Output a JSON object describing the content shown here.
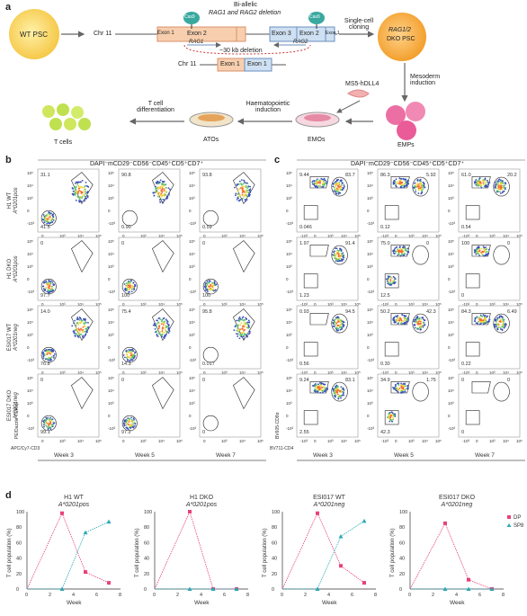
{
  "panel_a": {
    "label": "a",
    "wt_psc": "WT PSC",
    "chr11_top": "Chr 11",
    "bi_allelic": "Bi-allelic",
    "deletion_text": "RAG1 and RAG2 deletion",
    "cas9_left": "Cas9",
    "cas9_right": "Cas9",
    "exon2_left": "Exon 2",
    "exon1_left": "Exon 1",
    "exon3": "Exon 3",
    "exon2_right": "Exon 2",
    "exon1_right": "Exon 1",
    "rag1_tag": "RAG1",
    "rag2_tag": "RAG2",
    "deletion_size": "~30 kb deletion",
    "chr11_bottom": "Chr 11",
    "exon1_b1": "Exon 1",
    "exon1_b2": "Exon 1",
    "single_cell_cloning": "Single-cell cloning",
    "dko_psc_line1": "RAG1/2",
    "dko_psc_line2": "DKO PSC",
    "mesoderm_induction": "Mesoderm induction",
    "ms5": "MS5-hDLL4",
    "emps": "EMPs",
    "emos": "EMOs",
    "atos": "ATOs",
    "haemato_induction": "Haematopoietic induction",
    "tcell_diff": "T cell differentiation",
    "tcells": "T cells"
  },
  "panel_b": {
    "label": "b",
    "header": "DAPI⁻mCD29⁻CD56⁻CD45⁺CD5⁺CD7⁺",
    "y_axis": "PE/Dazzle-TCRαβ",
    "x_axis": "APC/Cy7-CD3",
    "weeks": [
      "Week 3",
      "Week 5",
      "Week 7"
    ],
    "rows": [
      {
        "name": "H1 WT",
        "allele": "A*0201pos",
        "vals": [
          [
            "31.1",
            "41.5"
          ],
          [
            "90.8",
            "0.90"
          ],
          [
            "93.8",
            "0.59"
          ]
        ]
      },
      {
        "name": "H1 DKO",
        "allele": "A*0201pos",
        "vals": [
          [
            "0",
            "97.7"
          ],
          [
            "0",
            "100"
          ],
          [
            "0",
            "100"
          ]
        ]
      },
      {
        "name": "ESI017 WT",
        "allele": "A*0201neg",
        "vals": [
          [
            "14.0",
            "76.8"
          ],
          [
            "75.4",
            "14.3"
          ],
          [
            "95.8",
            "0.017"
          ]
        ]
      },
      {
        "name": "ESI017 DKO",
        "allele": "A*0201neg",
        "vals": [
          [
            "0",
            "99.1"
          ],
          [
            "0",
            "97.2"
          ],
          [
            "0",
            "0"
          ]
        ]
      }
    ],
    "ticks_y": [
      "10⁵",
      "10⁴",
      "10³",
      "0",
      "-10³"
    ],
    "ticks_x": [
      "0",
      "10³",
      "10⁴",
      "10⁵"
    ]
  },
  "panel_c": {
    "label": "c",
    "header": "DAPI⁻mCD29⁻CD56⁻CD45⁺CD5⁺CD7⁺",
    "y_axis": "BV605-CD8α",
    "x_axis": "BV711-CD4",
    "weeks": [
      "Week 3",
      "Week 5",
      "Week 7"
    ],
    "rows": [
      {
        "vals": [
          [
            "9.44",
            "83.7",
            "0.046"
          ],
          [
            "86.3",
            "5.92",
            "0.12"
          ],
          [
            "61.0",
            "20.2",
            "0.54"
          ]
        ]
      },
      {
        "vals": [
          [
            "1.97",
            "91.4",
            "1.23"
          ],
          [
            "75.0",
            "0",
            "12.5"
          ],
          [
            "100",
            "0",
            "0"
          ]
        ]
      },
      {
        "vals": [
          [
            "0.93",
            "94.5",
            "0.56"
          ],
          [
            "50.2",
            "42.3",
            "0.30"
          ],
          [
            "84.3",
            "6.49",
            "0.22"
          ]
        ]
      },
      {
        "vals": [
          [
            "9.24",
            "83.1",
            "2.55"
          ],
          [
            "34.9",
            "1.75",
            "42.3"
          ],
          [
            "0",
            "0",
            "0"
          ]
        ]
      }
    ],
    "ticks_y": [
      "10⁵",
      "10⁴",
      "10³",
      "0",
      "-10³"
    ],
    "ticks_x": [
      "-10³",
      "0",
      "10³",
      "10⁴",
      "10⁵"
    ]
  },
  "panel_d": {
    "label": "d",
    "ylabel": "T cell population (%)",
    "xlabel": "Week",
    "legend": [
      "DP",
      "SP8"
    ],
    "colors": {
      "dp": "#e8417d",
      "sp8": "#2aa8b8"
    }
  },
  "chart_data": [
    {
      "type": "line",
      "title": "H1 WT",
      "subtitle": "A*0201pos",
      "xlabel": "Week",
      "ylabel": "T cell population (%)",
      "x": [
        0,
        2,
        3,
        5,
        7
      ],
      "xlim": [
        0,
        8
      ],
      "ylim": [
        0,
        100
      ],
      "series": [
        {
          "name": "DP",
          "x": [
            3,
            5,
            7
          ],
          "values": [
            98,
            22,
            8
          ]
        },
        {
          "name": "SP8",
          "x": [
            3,
            5,
            7
          ],
          "values": [
            0,
            73,
            87
          ]
        }
      ]
    },
    {
      "type": "line",
      "title": "H1 DKO",
      "subtitle": "A*0201pos",
      "xlabel": "Week",
      "ylabel": "T cell population (%)",
      "xlim": [
        0,
        8
      ],
      "ylim": [
        0,
        100
      ],
      "series": [
        {
          "name": "DP",
          "x": [
            3,
            5,
            7
          ],
          "values": [
            100,
            0,
            0
          ]
        },
        {
          "name": "SP8",
          "x": [
            3,
            5,
            7
          ],
          "values": [
            0,
            0,
            0
          ]
        }
      ]
    },
    {
      "type": "line",
      "title": "ESI017 WT",
      "subtitle": "A*0201neg",
      "xlabel": "Week",
      "ylabel": "T cell population (%)",
      "xlim": [
        0,
        8
      ],
      "ylim": [
        0,
        100
      ],
      "series": [
        {
          "name": "DP",
          "x": [
            3,
            5,
            7
          ],
          "values": [
            98,
            30,
            8
          ]
        },
        {
          "name": "SP8",
          "x": [
            3,
            5,
            7
          ],
          "values": [
            0,
            68,
            88
          ]
        }
      ]
    },
    {
      "type": "line",
      "title": "ESI017 DKO",
      "subtitle": "A*0201neg",
      "xlabel": "Week",
      "ylabel": "T cell population (%)",
      "xlim": [
        0,
        8
      ],
      "ylim": [
        0,
        100
      ],
      "series": [
        {
          "name": "DP",
          "x": [
            3,
            5,
            7
          ],
          "values": [
            85,
            12,
            0
          ]
        },
        {
          "name": "SP8",
          "x": [
            3,
            5,
            7
          ],
          "values": [
            0,
            0,
            0
          ]
        }
      ]
    }
  ]
}
